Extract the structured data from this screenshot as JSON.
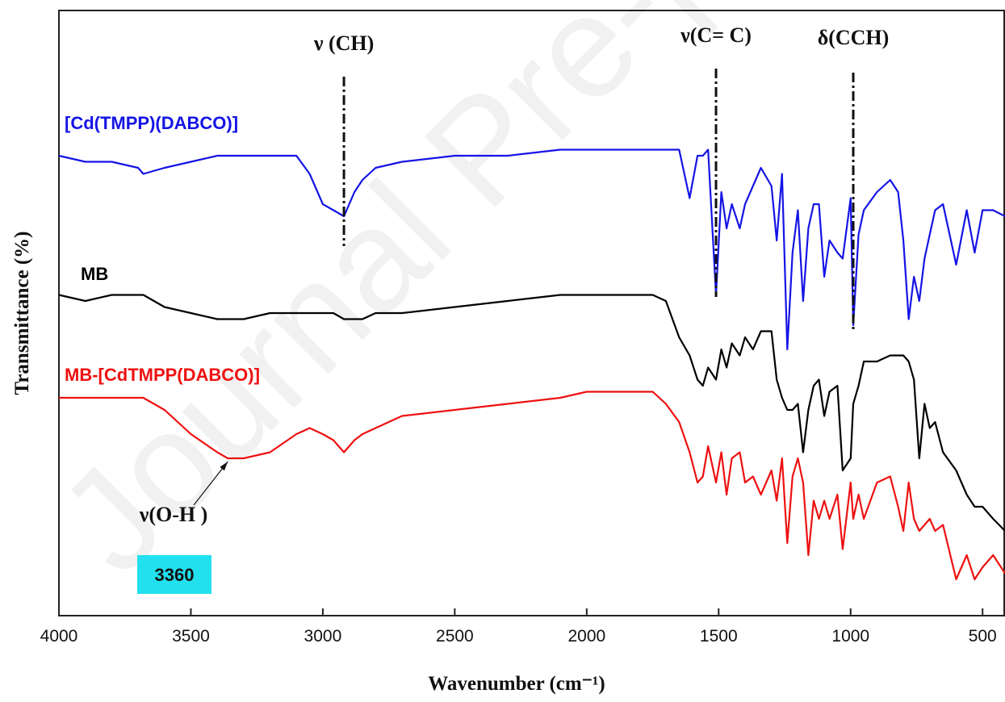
{
  "chart_data": {
    "type": "line",
    "watermark": "Journal Pre-proof",
    "xlabel": "Wavenumber (cm⁻¹)",
    "ylabel": "Transmittance (%)",
    "xlim": [
      4000,
      415
    ],
    "xticks": [
      4000,
      3500,
      3000,
      2500,
      2000,
      1500,
      1000,
      500
    ],
    "ylim": [
      0,
      100
    ],
    "x": [
      4000,
      3900,
      3800,
      3700,
      3680,
      3600,
      3500,
      3400,
      3360,
      3300,
      3200,
      3100,
      3050,
      3000,
      2960,
      2920,
      2880,
      2850,
      2800,
      2700,
      2500,
      2300,
      2100,
      2000,
      1900,
      1800,
      1750,
      1700,
      1650,
      1610,
      1580,
      1560,
      1540,
      1510,
      1490,
      1470,
      1450,
      1420,
      1400,
      1370,
      1340,
      1300,
      1280,
      1260,
      1240,
      1220,
      1200,
      1180,
      1160,
      1140,
      1120,
      1100,
      1080,
      1050,
      1030,
      1000,
      990,
      970,
      950,
      900,
      850,
      820,
      800,
      780,
      760,
      740,
      720,
      700,
      680,
      650,
      600,
      560,
      530,
      500,
      460,
      415
    ],
    "series": [
      {
        "name": "[Cd(TMPP)(DABCO)]",
        "color": "#1414e6",
        "values": [
          76,
          75,
          75,
          74,
          73,
          74,
          75,
          76,
          76,
          76,
          76,
          76,
          73,
          68,
          67,
          66,
          70,
          72,
          74,
          75,
          76,
          76,
          77,
          77,
          77,
          77,
          77,
          77,
          77,
          69,
          76,
          76,
          77,
          53,
          70,
          64,
          68,
          64,
          68,
          71,
          74,
          71,
          62,
          73,
          44,
          60,
          67,
          52,
          64,
          68,
          68,
          56,
          62,
          60,
          59,
          69,
          48,
          63,
          67,
          70,
          72,
          70,
          62,
          49,
          56,
          52,
          59,
          63,
          67,
          68,
          58,
          67,
          60,
          67,
          67,
          66
        ]
      },
      {
        "name": "MB",
        "color": "#000000",
        "values": [
          53,
          52,
          53,
          53,
          53,
          51,
          50,
          49,
          49,
          49,
          50,
          50,
          50,
          50,
          50,
          49,
          49,
          49,
          50,
          50,
          51,
          52,
          53,
          53,
          53,
          53,
          53,
          52,
          46,
          43,
          39,
          38,
          41,
          39,
          44,
          41,
          45,
          43,
          46,
          44,
          47,
          47,
          39,
          36,
          34,
          34,
          35,
          27,
          34,
          38,
          39,
          33,
          37,
          38,
          24,
          26,
          35,
          38,
          42,
          42,
          43,
          43,
          43,
          42,
          39,
          26,
          35,
          31,
          32,
          27,
          24,
          20,
          18,
          18,
          16,
          14
        ]
      },
      {
        "name": "MB-[CdTMPP(DABCO)]",
        "color": "#ee1111",
        "values": [
          36,
          36,
          36,
          36,
          36,
          34,
          30,
          27,
          26,
          26,
          27,
          30,
          31,
          30,
          29,
          27,
          29,
          30,
          31,
          33,
          34,
          35,
          36,
          37,
          37,
          37,
          37,
          35,
          32,
          27,
          22,
          23,
          28,
          22,
          27,
          20,
          26,
          27,
          22,
          23,
          20,
          24,
          19,
          26,
          12,
          23,
          26,
          22,
          10,
          19,
          16,
          19,
          16,
          20,
          11,
          22,
          16,
          20,
          16,
          22,
          23,
          18,
          14,
          22,
          16,
          14,
          15,
          16,
          14,
          15,
          6,
          10,
          6,
          8,
          10,
          7
        ]
      }
    ],
    "annotations": [
      {
        "text": "ν (CH)",
        "x": 2920
      },
      {
        "text": "ν(C= C)",
        "x": 1510
      },
      {
        "text": "δ(CCH)",
        "x": 990
      },
      {
        "text": "ν(O-H )",
        "x": 3360
      }
    ]
  }
}
